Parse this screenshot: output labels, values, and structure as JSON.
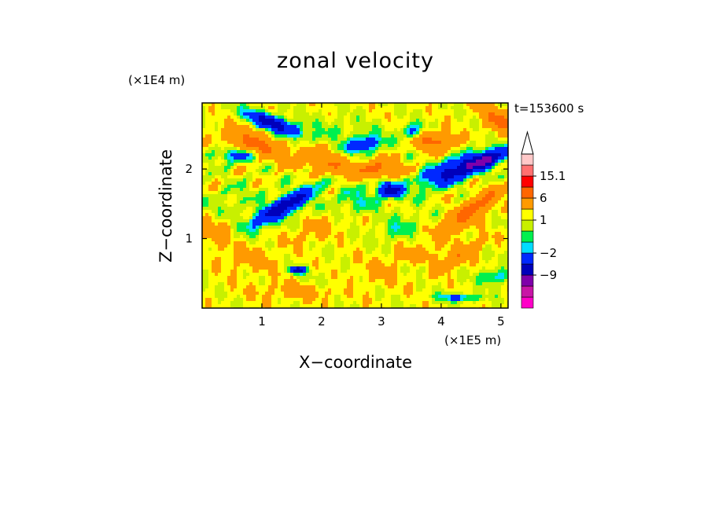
{
  "chart_data": {
    "type": "heatmap",
    "title": "zonal velocity",
    "xlabel": "X−coordinate",
    "ylabel": "Z−coordinate",
    "x_multiplier": "(×1E5 m)",
    "y_multiplier": "(×1E4 m)",
    "time_label": "t=153600 s",
    "xlim": [
      0,
      5.12
    ],
    "ylim": [
      0,
      2.95
    ],
    "x_ticks": [
      1,
      2,
      3,
      4,
      5
    ],
    "x_tick_labels": [
      "1",
      "2",
      "3",
      "4",
      "5"
    ],
    "y_ticks": [
      1,
      2
    ],
    "y_tick_labels": [
      "1",
      "2"
    ],
    "grid": false,
    "colorbar": {
      "levels": [
        -16,
        -12.5,
        -9,
        -5.5,
        -2,
        -1,
        0,
        1,
        2,
        6,
        10.5,
        15.1
      ],
      "colors": [
        "#ff00c8",
        "#c815a6",
        "#7f00aa",
        "#0000bb",
        "#0028ff",
        "#00dcff",
        "#00f04f",
        "#c8f000",
        "#ffff00",
        "#ff9a00",
        "#ff6600",
        "#ff0000",
        "#ff7070",
        "#ffc8c8"
      ],
      "labels": [
        {
          "value": 15.1,
          "text": "15.1"
        },
        {
          "value": 6,
          "text": "6"
        },
        {
          "value": 1,
          "text": "1"
        },
        {
          "value": -2,
          "text": "−2"
        },
        {
          "value": -9,
          "text": "−9"
        }
      ],
      "extend": "max"
    },
    "blobs": [
      {
        "x": 1.2,
        "z": 2.65,
        "rx": 0.45,
        "rz": 0.1,
        "a": -0.3,
        "v": -9
      },
      {
        "x": 0.6,
        "z": 2.2,
        "rx": 0.35,
        "rz": 0.1,
        "a": 0,
        "v": -4
      },
      {
        "x": 1.35,
        "z": 1.45,
        "rx": 0.55,
        "rz": 0.13,
        "a": 0.45,
        "v": -9
      },
      {
        "x": 2.7,
        "z": 2.35,
        "rx": 0.3,
        "rz": 0.1,
        "a": 0.2,
        "v": -6
      },
      {
        "x": 3.15,
        "z": 1.7,
        "rx": 0.2,
        "rz": 0.1,
        "a": -0.2,
        "v": -9
      },
      {
        "x": 4.3,
        "z": 2.0,
        "rx": 0.6,
        "rz": 0.15,
        "a": 0.3,
        "v": -9
      },
      {
        "x": 4.8,
        "z": 2.15,
        "rx": 0.3,
        "rz": 0.1,
        "a": 0.3,
        "v": -7
      },
      {
        "x": 3.5,
        "z": 2.55,
        "rx": 0.15,
        "rz": 0.1,
        "a": 0,
        "v": -4
      },
      {
        "x": 1.6,
        "z": 0.55,
        "rx": 0.12,
        "rz": 0.05,
        "a": 0,
        "v": -9
      },
      {
        "x": 4.3,
        "z": 0.15,
        "rx": 0.35,
        "rz": 0.05,
        "a": 0,
        "v": -4
      },
      {
        "x": 4.9,
        "z": 0.45,
        "rx": 0.25,
        "rz": 0.1,
        "a": 0,
        "v": -3
      },
      {
        "x": 2.6,
        "z": 1.55,
        "rx": 0.4,
        "rz": 0.2,
        "a": 0,
        "v": -2
      },
      {
        "x": 3.3,
        "z": 1.15,
        "rx": 0.35,
        "rz": 0.15,
        "a": 0.4,
        "v": -2
      },
      {
        "x": 0.5,
        "z": 1.55,
        "rx": 0.5,
        "rz": 0.2,
        "a": 0.2,
        "v": -1
      },
      {
        "x": 2.3,
        "z": 2.55,
        "rx": 0.6,
        "rz": 0.2,
        "a": -0.15,
        "v": -1
      },
      {
        "x": 3.6,
        "z": 0.6,
        "rx": 0.35,
        "rz": 0.15,
        "a": 0,
        "v": -1.5
      },
      {
        "x": 0.9,
        "z": 2.35,
        "rx": 0.5,
        "rz": 0.15,
        "a": -0.3,
        "v": 6
      },
      {
        "x": 2.05,
        "z": 2.1,
        "rx": 0.4,
        "rz": 0.15,
        "a": -0.3,
        "v": 5
      },
      {
        "x": 2.9,
        "z": 2.0,
        "rx": 0.35,
        "rz": 0.12,
        "a": 0,
        "v": 6
      },
      {
        "x": 3.9,
        "z": 2.4,
        "rx": 0.3,
        "rz": 0.12,
        "a": 0,
        "v": 6
      },
      {
        "x": 4.5,
        "z": 1.4,
        "rx": 0.55,
        "rz": 0.13,
        "a": 0.55,
        "v": 7
      },
      {
        "x": 4.95,
        "z": 2.7,
        "rx": 0.3,
        "rz": 0.15,
        "a": -0.5,
        "v": 6
      },
      {
        "x": 4.3,
        "z": 0.75,
        "rx": 0.45,
        "rz": 0.1,
        "a": 0.5,
        "v": 4
      },
      {
        "x": 3.6,
        "z": 0.75,
        "rx": 0.2,
        "rz": 0.08,
        "a": 0,
        "v": 3
      },
      {
        "x": 1.9,
        "z": 1.1,
        "rx": 0.5,
        "rz": 0.15,
        "a": 0.3,
        "v": 1.5
      },
      {
        "x": 3.3,
        "z": 0.6,
        "rx": 0.8,
        "rz": 0.25,
        "a": 0.2,
        "v": 1.5
      },
      {
        "x": 1.6,
        "z": 0.25,
        "rx": 0.9,
        "rz": 0.15,
        "a": 0,
        "v": 1.5
      },
      {
        "x": 0.8,
        "z": 0.7,
        "rx": 0.5,
        "rz": 0.2,
        "a": 0,
        "v": 1.5
      },
      {
        "x": 2.2,
        "z": 0.35,
        "rx": 0.5,
        "rz": 0.1,
        "a": -0.2,
        "v": -1
      },
      {
        "x": 0.25,
        "z": 1.05,
        "rx": 0.25,
        "rz": 0.2,
        "a": 0,
        "v": 2
      }
    ]
  }
}
